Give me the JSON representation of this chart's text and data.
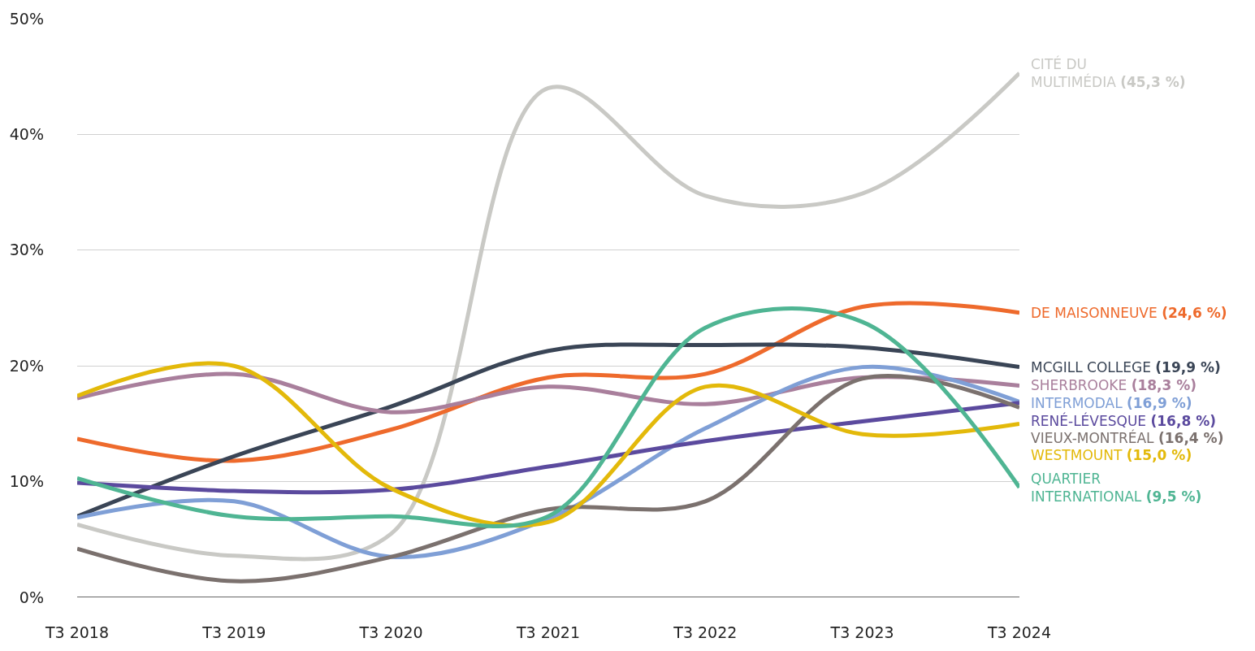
{
  "chart_data": {
    "type": "line",
    "categories": [
      "T3 2018",
      "T3 2019",
      "T3 2020",
      "T3 2021",
      "T3 2022",
      "T3 2023",
      "T3 2024"
    ],
    "series": [
      {
        "name": "CITÉ DU\nMULTIMÉDIA (45,3 %)",
        "color": "#c9c9c5",
        "values": [
          6.3,
          3.6,
          5.5,
          44.0,
          34.7,
          34.9,
          45.3
        ]
      },
      {
        "name": "DE MAISONNEUVE (24,6 %)",
        "color": "#ee6a2c",
        "values": [
          13.7,
          11.8,
          14.5,
          19.0,
          19.3,
          25.1,
          24.6
        ]
      },
      {
        "name": "MCGILL COLLEGE (19,9 %)",
        "color": "#3a4556",
        "values": [
          7.0,
          12.2,
          16.5,
          21.3,
          21.8,
          21.6,
          19.9
        ]
      },
      {
        "name": "SHERBROOKE (18,3 %)",
        "color": "#a97f9c",
        "values": [
          17.2,
          19.3,
          16.0,
          18.2,
          16.7,
          19.0,
          18.3
        ]
      },
      {
        "name": "INTERMODAL (16,9 %)",
        "color": "#7f9fd6",
        "values": [
          6.9,
          8.3,
          3.5,
          6.8,
          14.6,
          19.9,
          16.9
        ]
      },
      {
        "name": "RENÉ-LÉVESQUE (16,8 %)",
        "color": "#5b4a9e",
        "values": [
          9.9,
          9.2,
          9.3,
          11.3,
          13.5,
          15.2,
          16.8
        ]
      },
      {
        "name": "VIEUX-MONTRÉAL (16,4 %)",
        "color": "#7b716e",
        "values": [
          4.2,
          1.4,
          3.5,
          7.6,
          8.3,
          18.9,
          16.4
        ]
      },
      {
        "name": "WESTMOUNT (15,0 %)",
        "color": "#e3b90a",
        "values": [
          17.4,
          20.0,
          9.4,
          6.5,
          18.2,
          14.1,
          15.0
        ]
      },
      {
        "name": "QUARTIER\nINTERNATIONAL (9,5 %)",
        "color": "#4fb593",
        "values": [
          10.3,
          7.0,
          7.0,
          7.0,
          23.3,
          23.8,
          9.5
        ]
      }
    ],
    "ylim": [
      0,
      50
    ],
    "yticks": [
      {
        "value": 0,
        "label": "0%"
      },
      {
        "value": 10,
        "label": "10%"
      },
      {
        "value": 20,
        "label": "20%"
      },
      {
        "value": 30,
        "label": "30%"
      },
      {
        "value": 40,
        "label": "40%"
      },
      {
        "value": 50,
        "label": "50%"
      }
    ],
    "grid": "y",
    "legend": false,
    "marker": "none",
    "line_style": "solid"
  }
}
